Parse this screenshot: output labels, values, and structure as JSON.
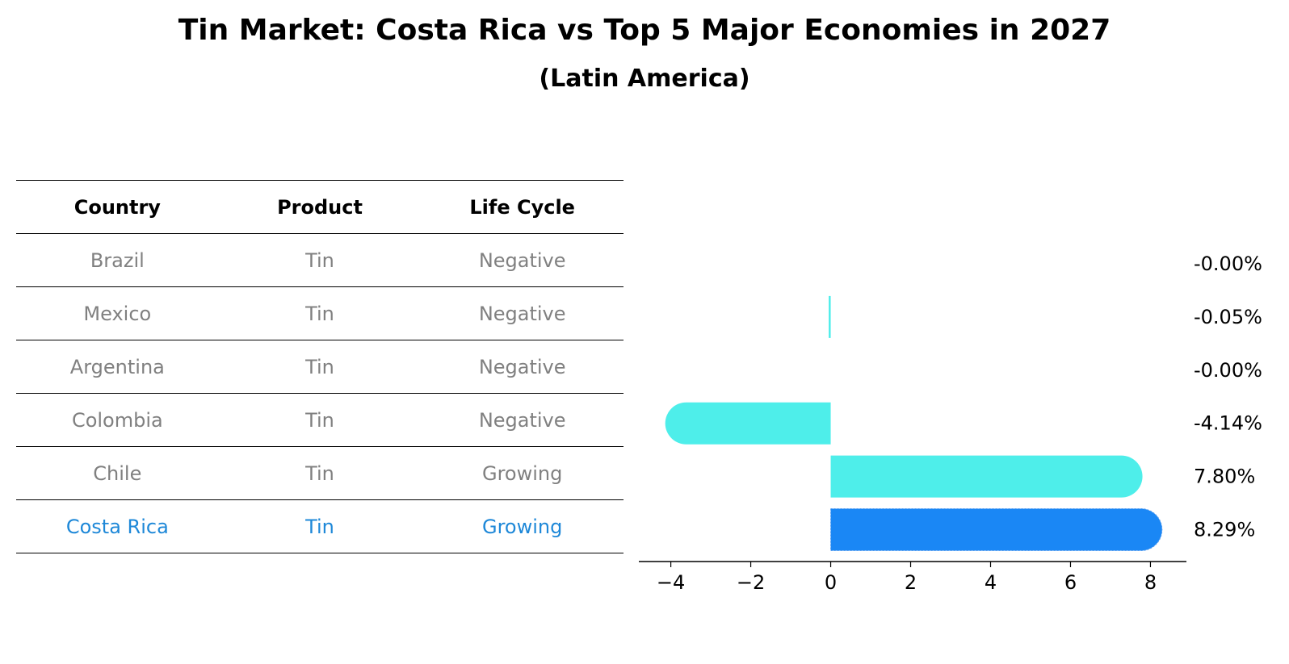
{
  "title": "Tin Market: Costa Rica vs Top 5 Major Economies in 2027",
  "subtitle": "(Latin America)",
  "table": {
    "headers": [
      "Country",
      "Product",
      "Life Cycle"
    ],
    "rows": [
      {
        "country": "Brazil",
        "product": "Tin",
        "life_cycle": "Negative"
      },
      {
        "country": "Mexico",
        "product": "Tin",
        "life_cycle": "Negative"
      },
      {
        "country": "Argentina",
        "product": "Tin",
        "life_cycle": "Negative"
      },
      {
        "country": "Colombia",
        "product": "Tin",
        "life_cycle": "Negative"
      },
      {
        "country": "Chile",
        "product": "Tin",
        "life_cycle": "Growing"
      },
      {
        "country": "Costa Rica",
        "product": "Tin",
        "life_cycle": "Growing"
      }
    ],
    "highlight_country": "Costa Rica"
  },
  "chart_data": {
    "type": "bar",
    "orientation": "horizontal",
    "categories": [
      "Brazil",
      "Mexico",
      "Argentina",
      "Colombia",
      "Chile",
      "Costa Rica"
    ],
    "values": [
      -0.0,
      -0.05,
      -0.0,
      -4.14,
      7.8,
      8.29
    ],
    "value_labels": [
      "-0.00%",
      "-0.05%",
      "-0.00%",
      "-4.14%",
      "7.80%",
      "8.29%"
    ],
    "xlim": [
      -4.8,
      8.9
    ],
    "xticks": [
      -4,
      -2,
      0,
      2,
      4,
      6,
      8
    ],
    "xtick_labels": [
      "−4",
      "−2",
      "0",
      "2",
      "4",
      "6",
      "8"
    ],
    "xlabel": "",
    "ylabel": "",
    "grid": false,
    "colors": {
      "default": "#4eeeea",
      "highlight": "#1a87f5",
      "highlight_table_text": "#1e88d8",
      "muted_text": "#808080"
    }
  }
}
